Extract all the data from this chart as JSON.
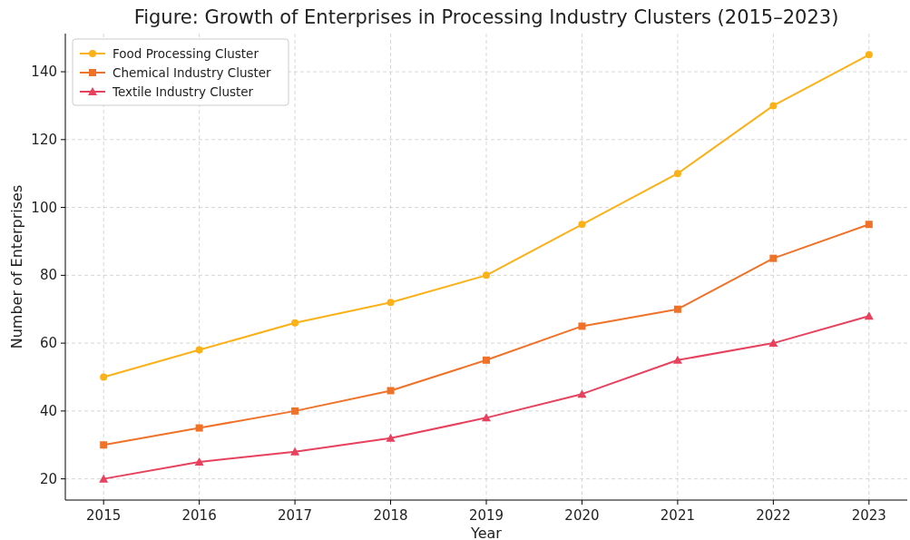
{
  "chart_data": {
    "type": "line",
    "title": "Figure: Growth of Enterprises in Processing Industry Clusters (2015–2023)",
    "xlabel": "Year",
    "ylabel": "Number of Enterprises",
    "x": [
      2015,
      2016,
      2017,
      2018,
      2019,
      2020,
      2021,
      2022,
      2023
    ],
    "series": [
      {
        "name": "Food Processing Cluster",
        "color": "#fbb117",
        "marker": "circle",
        "values": [
          50,
          58,
          66,
          72,
          80,
          95,
          110,
          130,
          145
        ]
      },
      {
        "name": "Chemical Industry Cluster",
        "color": "#f07228",
        "marker": "square",
        "values": [
          30,
          35,
          40,
          46,
          55,
          65,
          70,
          85,
          95
        ]
      },
      {
        "name": "Textile Industry Cluster",
        "color": "#e8415e",
        "marker": "triangle",
        "values": [
          20,
          25,
          28,
          32,
          38,
          45,
          55,
          60,
          68
        ]
      }
    ],
    "xlim": [
      2014.6,
      2023.4
    ],
    "xticks": [
      2015,
      2016,
      2017,
      2018,
      2019,
      2020,
      2021,
      2022,
      2023
    ],
    "ylim": [
      13.75,
      151.25
    ],
    "yticks": [
      20,
      40,
      60,
      80,
      100,
      120,
      140
    ],
    "grid": true,
    "legend": "top left",
    "line_style": "solid"
  }
}
